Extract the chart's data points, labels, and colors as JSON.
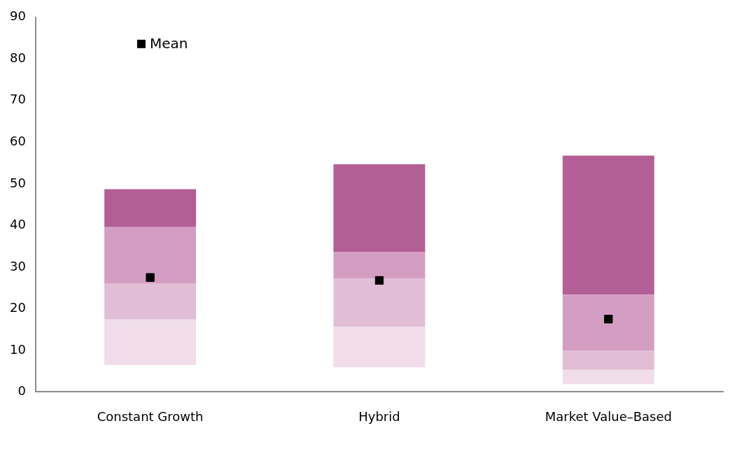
{
  "chart_data": {
    "type": "bar",
    "categories": [
      "Constant Growth",
      "Hybrid",
      "Market Value–Based"
    ],
    "series": [
      {
        "color": "#f0dde9",
        "base": [
          6.5,
          5.9,
          1.9
        ],
        "values": [
          10.9,
          9.8,
          3.4
        ]
      },
      {
        "color": "#e1bed6",
        "base": [
          17.4,
          15.7,
          5.3
        ],
        "values": [
          8.6,
          11.5,
          4.7
        ]
      },
      {
        "color": "#d49ec3",
        "base": [
          26.0,
          27.2,
          10.0
        ],
        "values": [
          13.6,
          6.4,
          13.4
        ]
      },
      {
        "color": "#b35f96",
        "base": [
          39.6,
          33.6,
          23.4
        ],
        "values": [
          9.1,
          21.1,
          33.4
        ]
      },
      {
        "type": "scatter",
        "name": "Mean",
        "color": "#000000",
        "marker": "square",
        "x": [
          "Constant Growth",
          "Hybrid",
          "Market Value–Based"
        ],
        "values": [
          27.5,
          26.8,
          17.5
        ]
      }
    ],
    "ylim": [
      0,
      90
    ],
    "yticks": [
      0,
      10,
      20,
      30,
      40,
      50,
      60,
      70,
      80,
      90
    ],
    "grid": false,
    "legend": "top left"
  }
}
